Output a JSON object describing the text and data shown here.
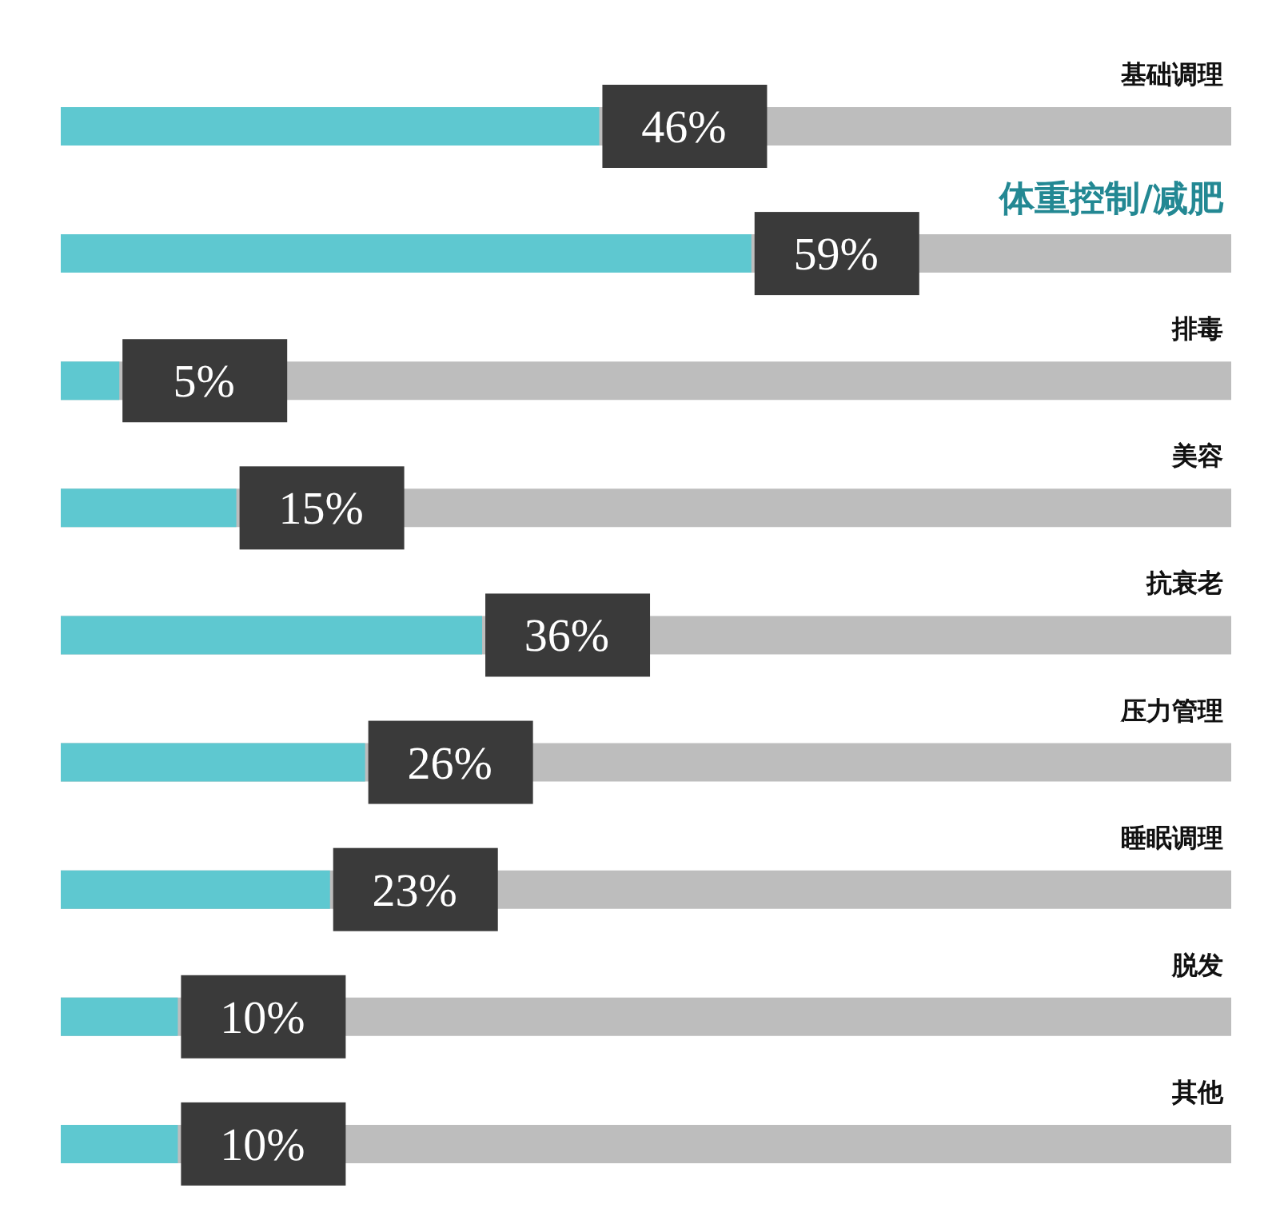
{
  "chart_data": {
    "type": "bar",
    "orientation": "horizontal",
    "categories": [
      "基础调理",
      "体重控制/减肥",
      "排毒",
      "美容",
      "抗衰老",
      "压力管理",
      "睡眠调理",
      "脱发",
      "其他"
    ],
    "values": [
      46,
      59,
      5,
      15,
      36,
      26,
      23,
      10,
      10
    ],
    "value_labels": [
      "46%",
      "59%",
      "5%",
      "15%",
      "36%",
      "26%",
      "23%",
      "10%",
      "10%"
    ],
    "color": "#5ec8d0",
    "xlim": [
      0,
      100
    ],
    "tick_labels": false
  }
}
